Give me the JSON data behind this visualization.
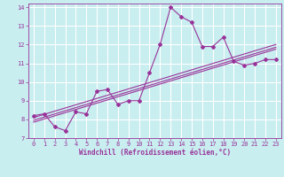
{
  "xlabel": "Windchill (Refroidissement éolien,°C)",
  "background_color": "#c8eef0",
  "grid_color": "#ffffff",
  "line_color": "#993399",
  "x_data": [
    0,
    1,
    2,
    3,
    4,
    5,
    6,
    7,
    8,
    9,
    10,
    11,
    12,
    13,
    14,
    15,
    16,
    17,
    18,
    19,
    20,
    21,
    22,
    23
  ],
  "y_main": [
    8.2,
    8.3,
    7.6,
    7.4,
    8.4,
    8.3,
    9.5,
    9.6,
    8.8,
    9.0,
    9.0,
    10.5,
    12.0,
    14.0,
    13.5,
    13.2,
    11.9,
    11.9,
    12.4,
    11.1,
    10.9,
    11.0,
    11.2,
    11.2
  ],
  "y_reg1": [
    8.1,
    8.27,
    8.44,
    8.61,
    8.78,
    8.95,
    9.12,
    9.29,
    9.46,
    9.63,
    9.8,
    9.97,
    10.14,
    10.31,
    10.48,
    10.65,
    10.82,
    10.99,
    11.16,
    11.33,
    11.5,
    11.67,
    11.84,
    12.01
  ],
  "y_reg2": [
    7.85,
    8.02,
    8.19,
    8.36,
    8.53,
    8.7,
    8.87,
    9.04,
    9.21,
    9.38,
    9.55,
    9.72,
    9.89,
    10.06,
    10.23,
    10.4,
    10.57,
    10.74,
    10.91,
    11.08,
    11.25,
    11.42,
    11.59,
    11.76
  ],
  "y_reg3": [
    7.95,
    8.12,
    8.29,
    8.46,
    8.63,
    8.8,
    8.97,
    9.14,
    9.31,
    9.48,
    9.65,
    9.82,
    9.99,
    10.16,
    10.33,
    10.5,
    10.67,
    10.84,
    11.01,
    11.18,
    11.35,
    11.52,
    11.69,
    11.86
  ],
  "xlim": [
    -0.5,
    23.5
  ],
  "ylim": [
    7,
    14.2
  ],
  "yticks": [
    7,
    8,
    9,
    10,
    11,
    12,
    13,
    14
  ],
  "xticks": [
    0,
    1,
    2,
    3,
    4,
    5,
    6,
    7,
    8,
    9,
    10,
    11,
    12,
    13,
    14,
    15,
    16,
    17,
    18,
    19,
    20,
    21,
    22,
    23
  ],
  "marker": "D",
  "marker_size": 2.0,
  "line_width": 0.8,
  "tick_fontsize": 5.0,
  "xlabel_fontsize": 5.5
}
